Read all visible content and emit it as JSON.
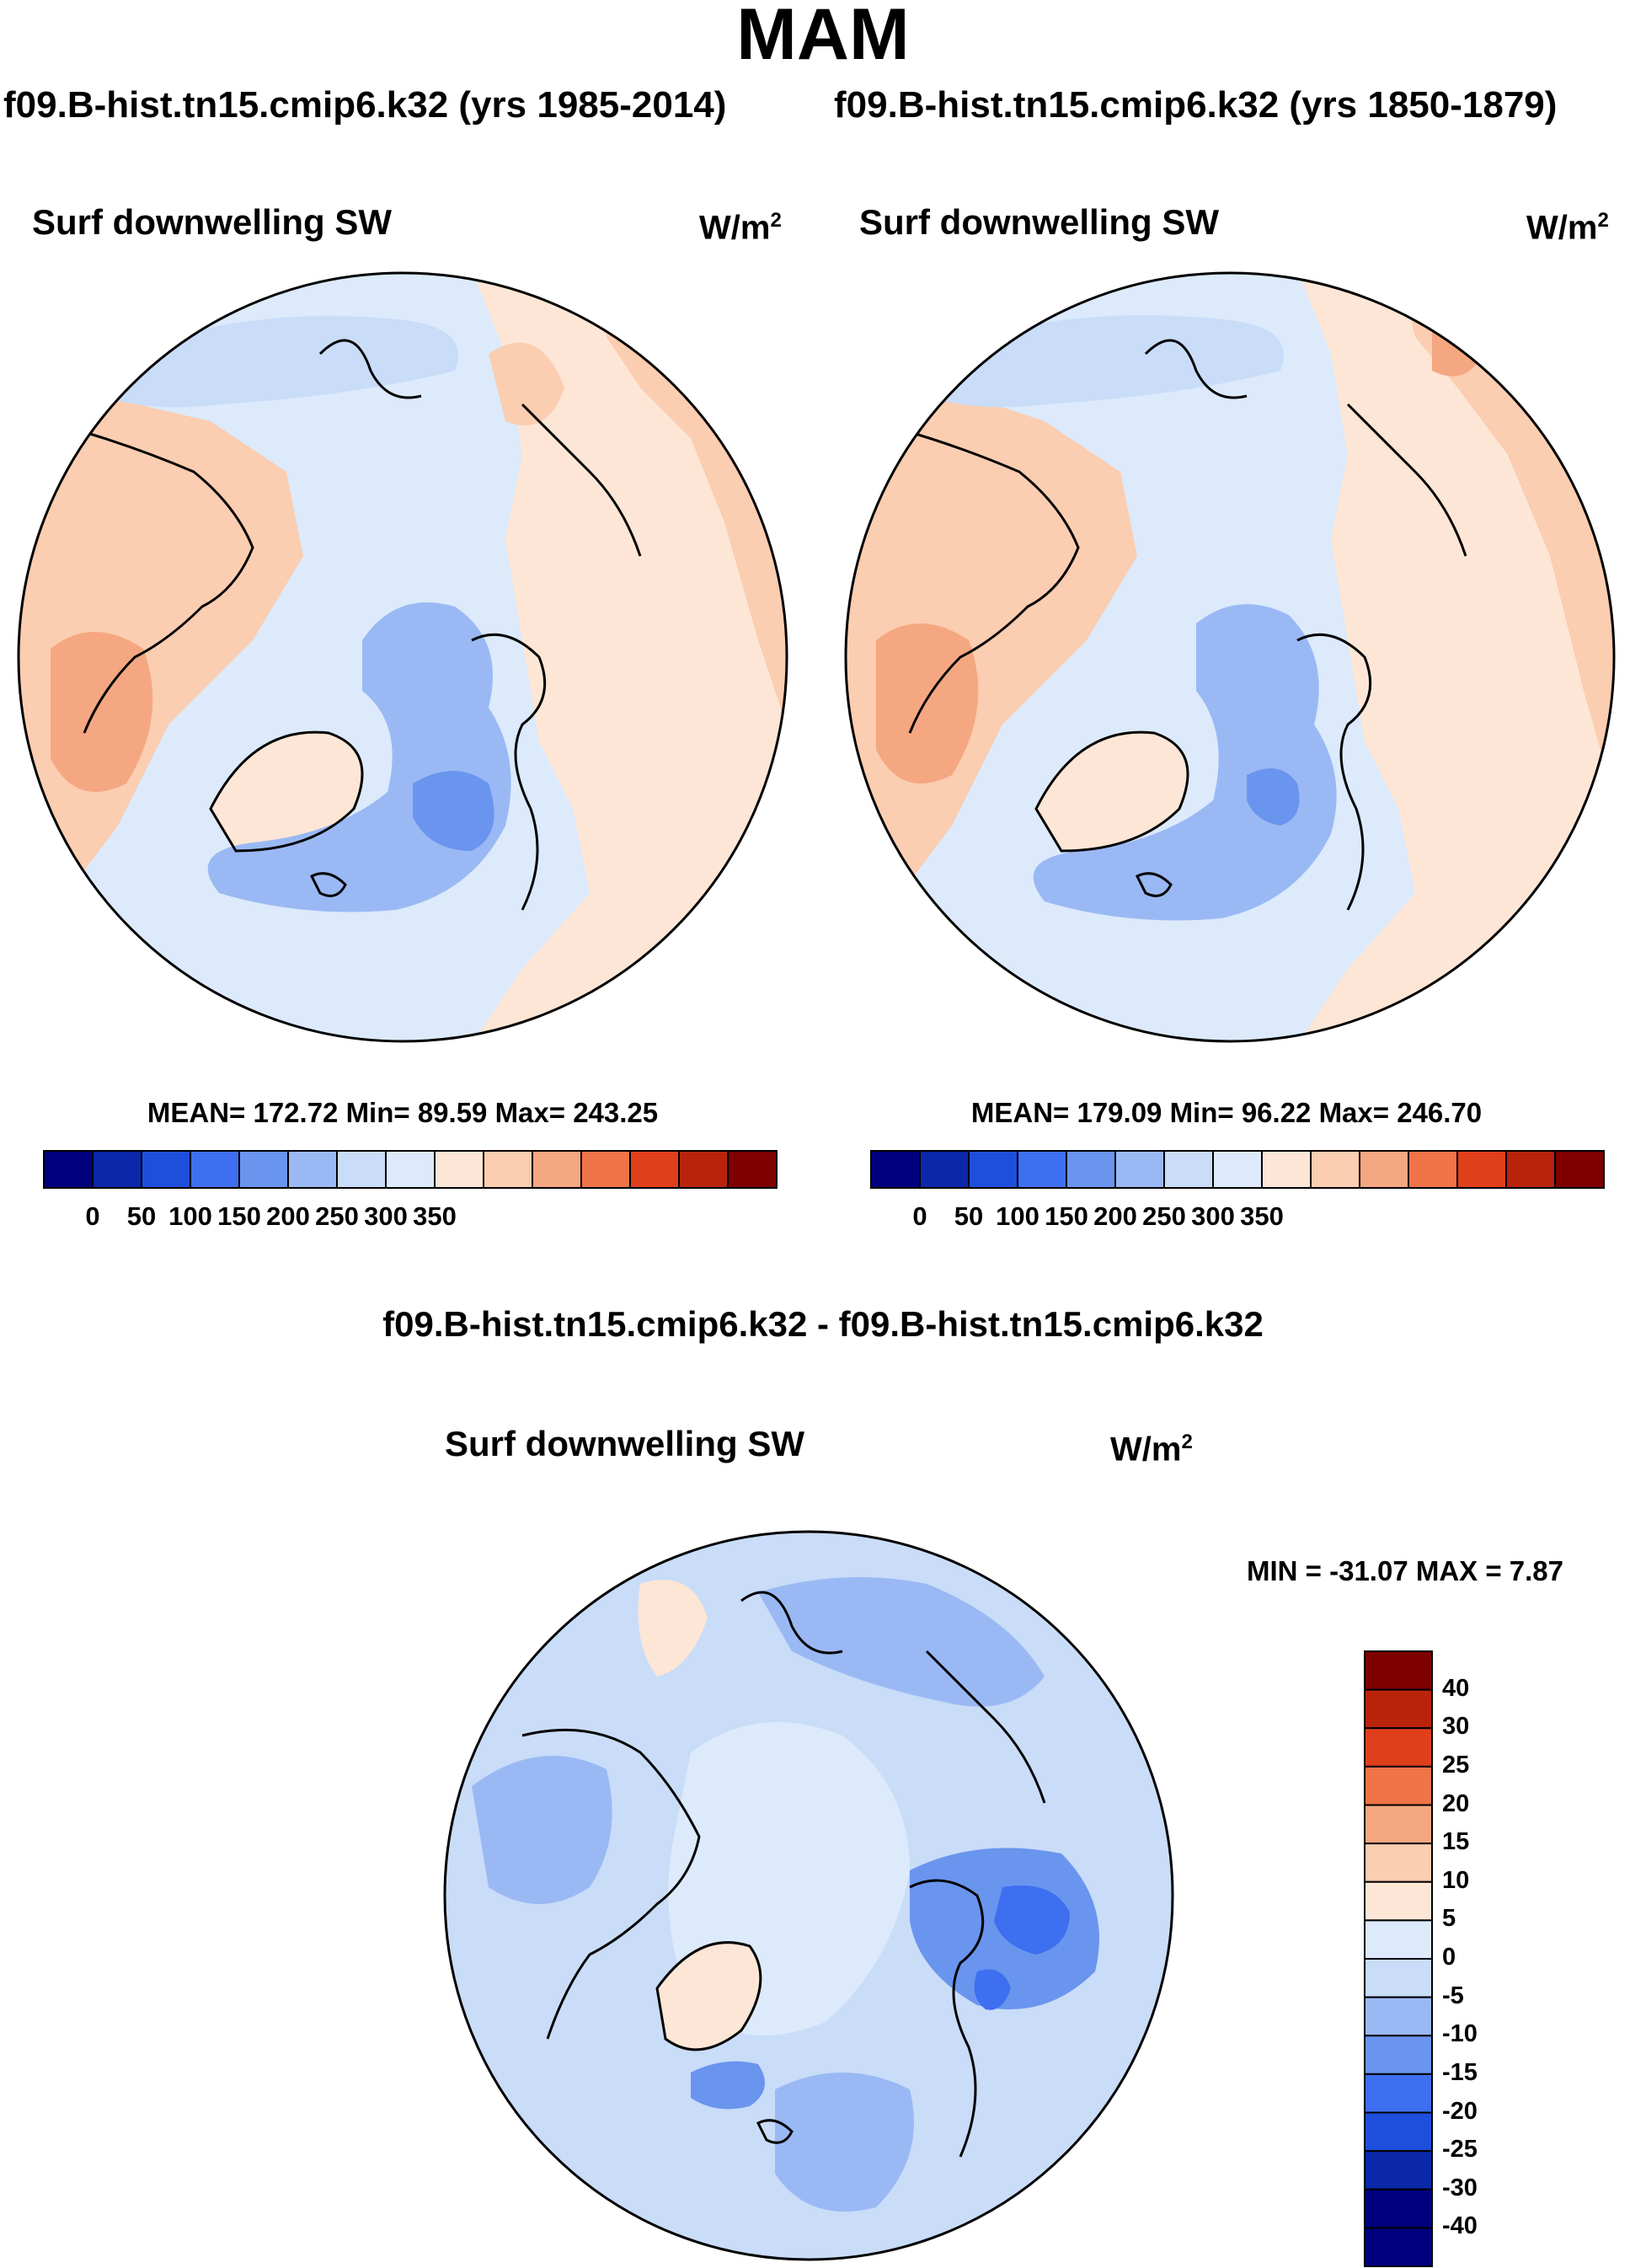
{
  "title": "MAM",
  "subtitles": [
    "f09.B-hist.tn15.cmip6.k32 (yrs 1985-2014)",
    "f09.B-hist.tn15.cmip6.k32 (yrs 1850-1879)"
  ],
  "diff_title": "f09.B-hist.tn15.cmip6.k32 - f09.B-hist.tn15.cmip6.k32",
  "chart_data": [
    {
      "type": "heatmap",
      "projection": "north polar stereographic",
      "variable": "Surf downwelling SW",
      "units_base": "W/m",
      "units_exp": "2",
      "period": "yrs 1985-2014",
      "stats_text": "MEAN= 172.72  Min=  89.59  Max= 243.25",
      "mean": 172.72,
      "min": 89.59,
      "max": 243.25,
      "colorbar_ticks": [
        "0",
        "50",
        "100",
        "150",
        "200",
        "250",
        "300",
        "350"
      ],
      "colors": [
        "#00007f",
        "#0a28a9",
        "#1d4fdc",
        "#3e6ff0",
        "#6a95ee",
        "#9ab9f4",
        "#c9dcf8",
        "#dceafb",
        "#fde6d6",
        "#fbcdb1",
        "#f5a781",
        "#ef7448",
        "#e03f1c",
        "#b9230c",
        "#7f0000"
      ]
    },
    {
      "type": "heatmap",
      "projection": "north polar stereographic",
      "variable": "Surf downwelling SW",
      "units_base": "W/m",
      "units_exp": "2",
      "period": "yrs 1850-1879",
      "stats_text": "MEAN= 179.09  Min=  96.22  Max= 246.70",
      "mean": 179.09,
      "min": 96.22,
      "max": 246.7,
      "colorbar_ticks": [
        "0",
        "50",
        "100",
        "150",
        "200",
        "250",
        "300",
        "350"
      ],
      "colors": [
        "#00007f",
        "#0a28a9",
        "#1d4fdc",
        "#3e6ff0",
        "#6a95ee",
        "#9ab9f4",
        "#c9dcf8",
        "#dceafb",
        "#fde6d6",
        "#fbcdb1",
        "#f5a781",
        "#ef7448",
        "#e03f1c",
        "#b9230c",
        "#7f0000"
      ]
    },
    {
      "type": "heatmap",
      "projection": "north polar stereographic",
      "variable": "Surf downwelling SW",
      "units_base": "W/m",
      "units_exp": "2",
      "period": "difference",
      "stats_text": "MIN = -31.07 MAX =   7.87",
      "min": -31.07,
      "max": 7.87,
      "colorbar_ticks": [
        "40",
        "30",
        "25",
        "20",
        "15",
        "10",
        "5",
        "0",
        "-5",
        "-10",
        "-15",
        "-20",
        "-25",
        "-30",
        "-40"
      ],
      "colors": [
        "#7f0000",
        "#b9230c",
        "#e03f1c",
        "#ef7448",
        "#f5a781",
        "#fbcdb1",
        "#fde6d6",
        "#dceafb",
        "#c9dcf8",
        "#9ab9f4",
        "#6a95ee",
        "#3e6ff0",
        "#1d4fdc",
        "#0a28a9",
        "#00007f",
        "#00007f"
      ]
    }
  ]
}
